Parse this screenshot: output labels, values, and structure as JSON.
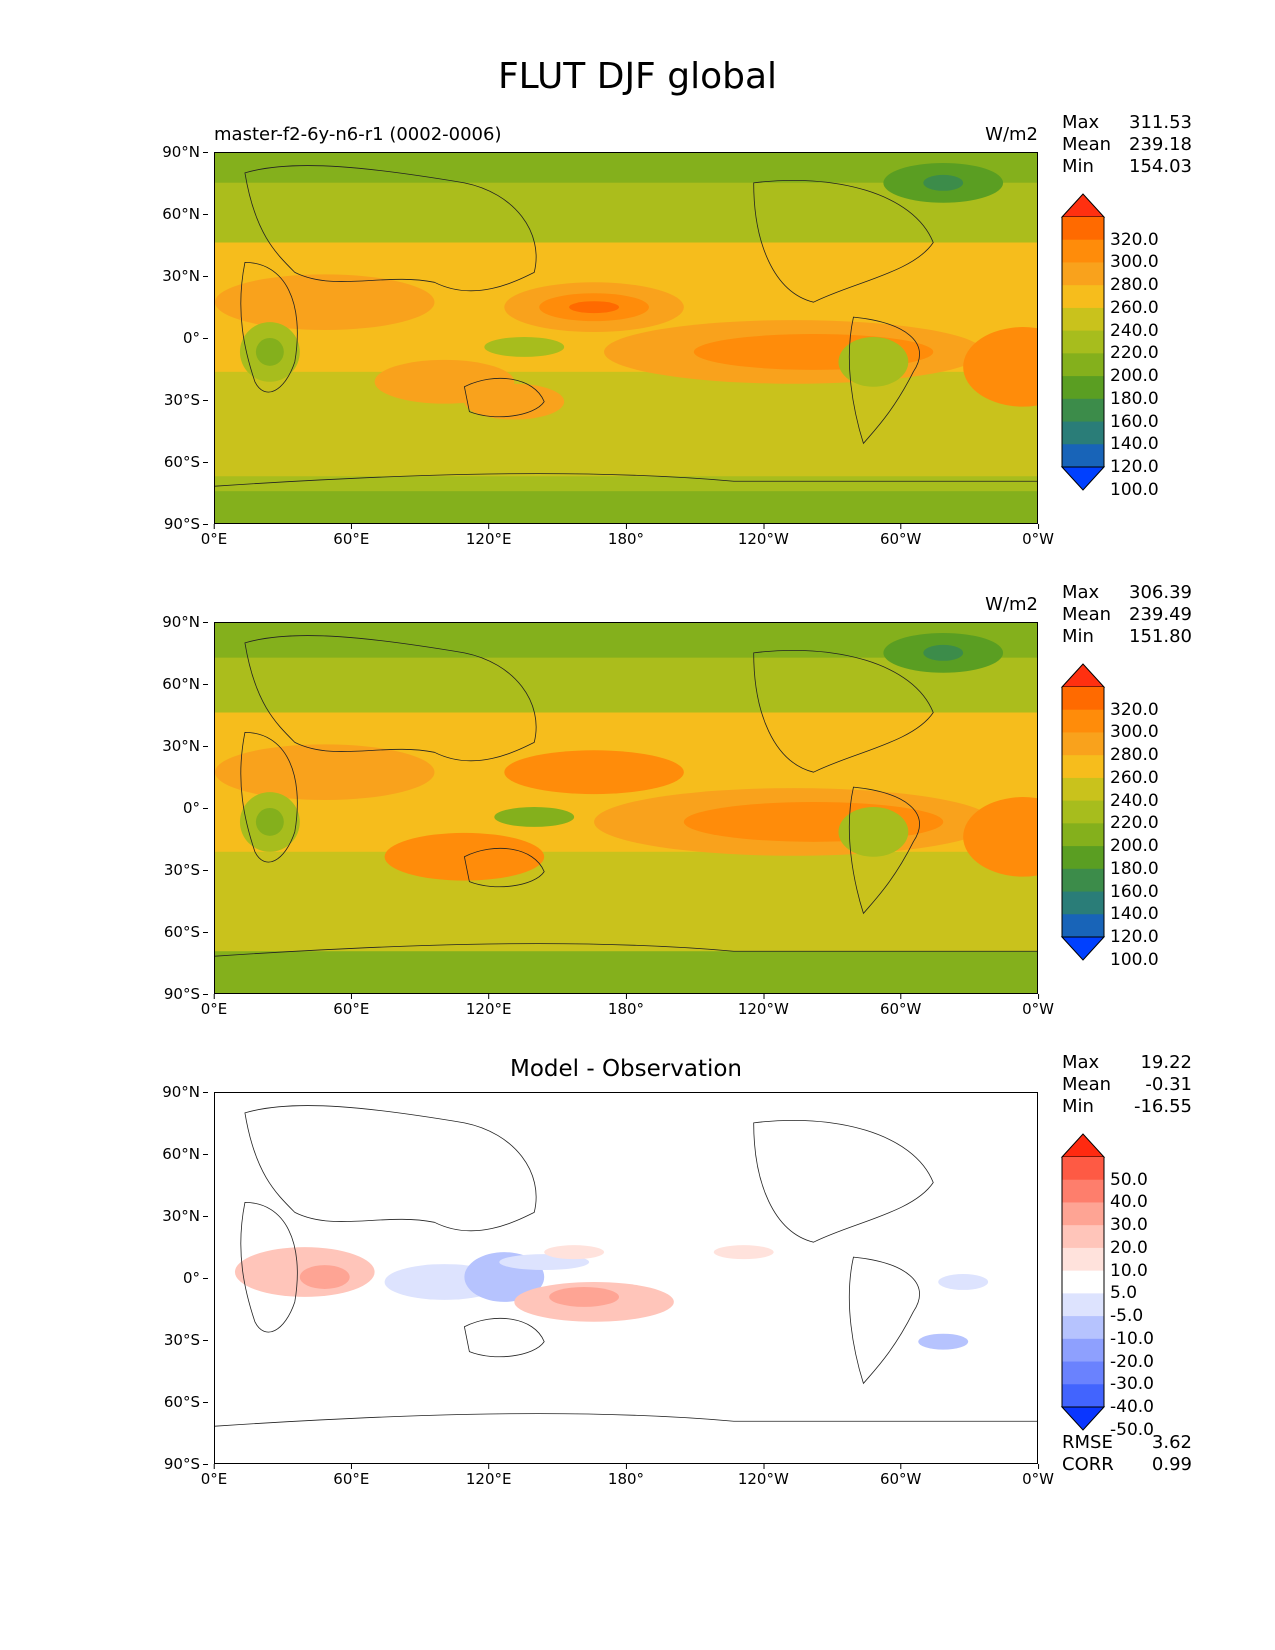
{
  "figure_title": "FLUT DJF global",
  "lat_ticks": [
    "90°N",
    "60°N",
    "30°N",
    "0°",
    "30°S",
    "60°S",
    "90°S"
  ],
  "lon_ticks": [
    "0°E",
    "60°E",
    "120°E",
    "180°",
    "120°W",
    "60°W",
    "0°W"
  ],
  "panels": [
    {
      "title_left": "master-f2-6y-n6-r1 (0002-0006)",
      "title_center": "",
      "units": "W/m2",
      "stats": {
        "max_label": "Max",
        "max": "311.53",
        "mean_label": "Mean",
        "mean": "239.18",
        "min_label": "Min",
        "min": "154.03"
      },
      "colorbar": {
        "labels": [
          "320.0",
          "300.0",
          "280.0",
          "260.0",
          "240.0",
          "220.0",
          "200.0",
          "180.0",
          "160.0",
          "140.0",
          "120.0",
          "100.0"
        ],
        "colors": [
          "#ff3010",
          "#ff6a00",
          "#ff8c0a",
          "#f9a21c",
          "#f6bd1c",
          "#c9c21c",
          "#a7bd1d",
          "#84b01c",
          "#5a9e22",
          "#3c8c4a",
          "#2a7d78",
          "#1864b8",
          "#0040ff"
        ]
      }
    },
    {
      "title_left": "",
      "title_center": "",
      "units": "W/m2",
      "stats": {
        "max_label": "Max",
        "max": "306.39",
        "mean_label": "Mean",
        "mean": "239.49",
        "min_label": "Min",
        "min": "151.80"
      },
      "colorbar": {
        "labels": [
          "320.0",
          "300.0",
          "280.0",
          "260.0",
          "240.0",
          "220.0",
          "200.0",
          "180.0",
          "160.0",
          "140.0",
          "120.0",
          "100.0"
        ],
        "colors": [
          "#ff3010",
          "#ff6a00",
          "#ff8c0a",
          "#f9a21c",
          "#f6bd1c",
          "#c9c21c",
          "#a7bd1d",
          "#84b01c",
          "#5a9e22",
          "#3c8c4a",
          "#2a7d78",
          "#1864b8",
          "#0040ff"
        ]
      }
    },
    {
      "title_left": "",
      "title_center": "Model - Observation",
      "units": "",
      "stats": {
        "max_label": "Max",
        "max": "19.22",
        "mean_label": "Mean",
        "mean": "-0.31",
        "min_label": "Min",
        "min": "-16.55"
      },
      "colorbar": {
        "labels": [
          "50.0",
          "40.0",
          "30.0",
          "20.0",
          "10.0",
          "5.0",
          "-5.0",
          "-10.0",
          "-20.0",
          "-30.0",
          "-40.0",
          "-50.0"
        ],
        "colors": [
          "#ff2a10",
          "#fe5a44",
          "#fe7e6c",
          "#fea494",
          "#ffc5ba",
          "#ffe2dc",
          "#ffffff",
          "#dde3fe",
          "#b6c3fe",
          "#8ea0fe",
          "#6a82fe",
          "#4264fe",
          "#0a36ff"
        ]
      },
      "rmse_label": "RMSE",
      "rmse": "3.62",
      "corr_label": "CORR",
      "corr": "0.99"
    }
  ]
}
